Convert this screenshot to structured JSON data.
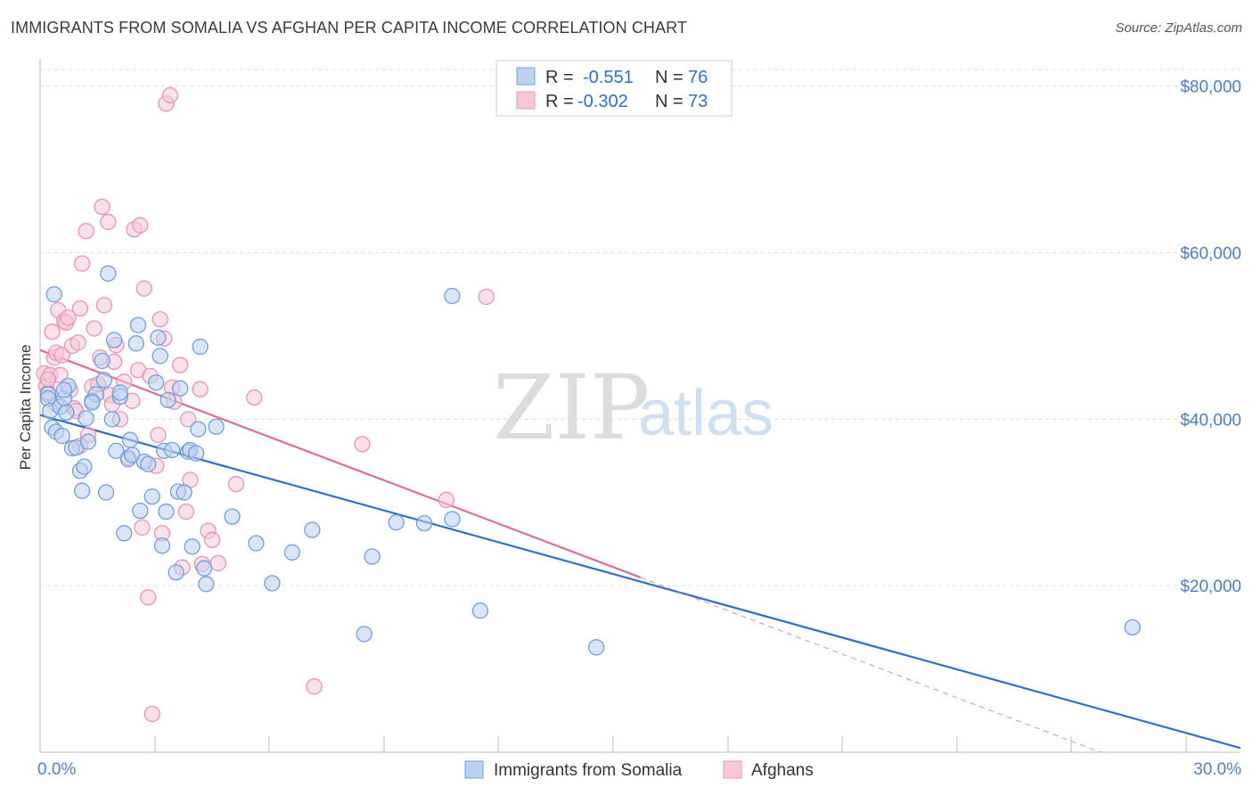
{
  "chart_data": {
    "type": "scatter",
    "title": "IMMIGRANTS FROM SOMALIA VS AFGHAN PER CAPITA INCOME CORRELATION CHART",
    "source": "Source: ZipAtlas.com",
    "ylabel": "Per Capita Income",
    "xlabel": "",
    "xlim": [
      0,
      30
    ],
    "ylim": [
      0,
      82000
    ],
    "x_tick_labels": [
      "0.0%",
      "30.0%"
    ],
    "y_ticks": [
      {
        "value": 20000,
        "label": "$20,000"
      },
      {
        "value": 40000,
        "label": "$40,000"
      },
      {
        "value": 60000,
        "label": "$60,000"
      },
      {
        "value": 80000,
        "label": "$80,000"
      }
    ],
    "watermark": {
      "part1": "ZIP",
      "part2": "atlas"
    },
    "legend": [
      {
        "series": "Immigrants from Somalia",
        "r_label": "R =",
        "r_value": "-0.551",
        "n_label": "N =",
        "n_value": "76"
      },
      {
        "series": "Afghans",
        "r_label": "R =",
        "r_value": "-0.302",
        "n_label": "N =",
        "n_value": "73"
      }
    ],
    "series": [
      {
        "name": "Immigrants from Somalia",
        "color": "#6f9fe0",
        "fill": "#bcd2f3",
        "line_color": "#2e6fcf",
        "trend": {
          "x0": 0,
          "y0": 40500,
          "x1": 30,
          "y1": 500
        },
        "points": [
          [
            0.2,
            43000
          ],
          [
            0.2,
            42500
          ],
          [
            0.25,
            41000
          ],
          [
            0.3,
            39000
          ],
          [
            0.35,
            55000
          ],
          [
            0.4,
            38500
          ],
          [
            0.5,
            41500
          ],
          [
            0.55,
            38000
          ],
          [
            0.6,
            42500
          ],
          [
            0.65,
            40800
          ],
          [
            0.7,
            44000
          ],
          [
            0.8,
            36500
          ],
          [
            0.9,
            36600
          ],
          [
            1.0,
            33800
          ],
          [
            1.05,
            31400
          ],
          [
            1.1,
            34300
          ],
          [
            1.15,
            40100
          ],
          [
            1.2,
            37300
          ],
          [
            1.3,
            42200
          ],
          [
            1.4,
            43000
          ],
          [
            1.55,
            47000
          ],
          [
            1.6,
            44700
          ],
          [
            1.65,
            31200
          ],
          [
            1.7,
            57500
          ],
          [
            1.8,
            40000
          ],
          [
            1.85,
            49500
          ],
          [
            1.9,
            36200
          ],
          [
            2.0,
            42700
          ],
          [
            2.1,
            26300
          ],
          [
            2.2,
            35200
          ],
          [
            2.25,
            37500
          ],
          [
            2.3,
            35700
          ],
          [
            2.4,
            49100
          ],
          [
            2.45,
            51300
          ],
          [
            2.5,
            29000
          ],
          [
            2.6,
            34900
          ],
          [
            2.7,
            34600
          ],
          [
            2.8,
            30700
          ],
          [
            2.9,
            44400
          ],
          [
            2.95,
            49800
          ],
          [
            3.0,
            47600
          ],
          [
            3.05,
            24800
          ],
          [
            3.1,
            36200
          ],
          [
            3.15,
            28900
          ],
          [
            3.2,
            42300
          ],
          [
            3.3,
            36300
          ],
          [
            3.4,
            21600
          ],
          [
            3.45,
            31300
          ],
          [
            3.5,
            43700
          ],
          [
            3.6,
            31200
          ],
          [
            3.7,
            36100
          ],
          [
            3.75,
            36300
          ],
          [
            3.8,
            24700
          ],
          [
            3.9,
            35900
          ],
          [
            3.95,
            38800
          ],
          [
            4.0,
            48700
          ],
          [
            4.1,
            22100
          ],
          [
            4.15,
            20200
          ],
          [
            4.4,
            39100
          ],
          [
            4.8,
            28300
          ],
          [
            5.4,
            25100
          ],
          [
            5.8,
            20300
          ],
          [
            6.3,
            24000
          ],
          [
            6.8,
            26700
          ],
          [
            8.1,
            14200
          ],
          [
            8.3,
            23500
          ],
          [
            8.9,
            27600
          ],
          [
            9.6,
            27500
          ],
          [
            10.3,
            54800
          ],
          [
            10.3,
            28000
          ],
          [
            11.0,
            17000
          ],
          [
            13.9,
            12600
          ],
          [
            27.3,
            15000
          ],
          [
            1.3,
            42000
          ],
          [
            0.6,
            43500
          ],
          [
            2.0,
            43200
          ]
        ]
      },
      {
        "name": "Afghans",
        "color": "#ec93b1",
        "fill": "#f8c8d8",
        "line_color": "#e06c94",
        "trend": {
          "x0": 0,
          "y0": 48300,
          "x1": 15,
          "y1": 21000
        },
        "trend_extension": {
          "x0": 15,
          "y0": 21000,
          "x1": 26.5,
          "y1": 0
        },
        "points": [
          [
            0.1,
            45500
          ],
          [
            0.15,
            44000
          ],
          [
            0.2,
            43200
          ],
          [
            0.25,
            45300
          ],
          [
            0.3,
            50500
          ],
          [
            0.35,
            47400
          ],
          [
            0.4,
            48000
          ],
          [
            0.45,
            53100
          ],
          [
            0.5,
            45300
          ],
          [
            0.55,
            47700
          ],
          [
            0.6,
            51800
          ],
          [
            0.65,
            51600
          ],
          [
            0.7,
            52200
          ],
          [
            0.75,
            43500
          ],
          [
            0.8,
            48800
          ],
          [
            0.85,
            41300
          ],
          [
            0.9,
            41000
          ],
          [
            0.95,
            49200
          ],
          [
            1.0,
            53300
          ],
          [
            1.05,
            58700
          ],
          [
            1.15,
            62600
          ],
          [
            1.2,
            38100
          ],
          [
            1.3,
            43900
          ],
          [
            1.35,
            50900
          ],
          [
            1.45,
            44200
          ],
          [
            1.5,
            47400
          ],
          [
            1.55,
            65500
          ],
          [
            1.6,
            53700
          ],
          [
            1.7,
            63700
          ],
          [
            1.75,
            42900
          ],
          [
            1.8,
            41800
          ],
          [
            1.85,
            46900
          ],
          [
            1.9,
            48900
          ],
          [
            2.0,
            40000
          ],
          [
            2.1,
            44500
          ],
          [
            2.2,
            35400
          ],
          [
            2.3,
            42200
          ],
          [
            2.35,
            62800
          ],
          [
            2.45,
            45900
          ],
          [
            2.5,
            63300
          ],
          [
            2.55,
            27000
          ],
          [
            2.6,
            55700
          ],
          [
            2.7,
            18600
          ],
          [
            2.75,
            45200
          ],
          [
            2.8,
            4600
          ],
          [
            2.9,
            34400
          ],
          [
            2.95,
            38100
          ],
          [
            3.0,
            52000
          ],
          [
            3.05,
            26300
          ],
          [
            3.1,
            49700
          ],
          [
            3.15,
            77900
          ],
          [
            3.25,
            78900
          ],
          [
            3.3,
            43800
          ],
          [
            3.35,
            42100
          ],
          [
            3.5,
            46500
          ],
          [
            3.55,
            22200
          ],
          [
            3.65,
            28900
          ],
          [
            3.7,
            40000
          ],
          [
            3.75,
            32700
          ],
          [
            4.0,
            43600
          ],
          [
            4.05,
            22600
          ],
          [
            4.2,
            26600
          ],
          [
            4.3,
            25500
          ],
          [
            4.45,
            22700
          ],
          [
            4.9,
            32200
          ],
          [
            5.35,
            42600
          ],
          [
            6.85,
            7900
          ],
          [
            8.05,
            37000
          ],
          [
            10.15,
            30300
          ],
          [
            11.15,
            54700
          ],
          [
            0.4,
            41800
          ],
          [
            1.0,
            36800
          ],
          [
            0.2,
            44800
          ]
        ]
      }
    ]
  }
}
